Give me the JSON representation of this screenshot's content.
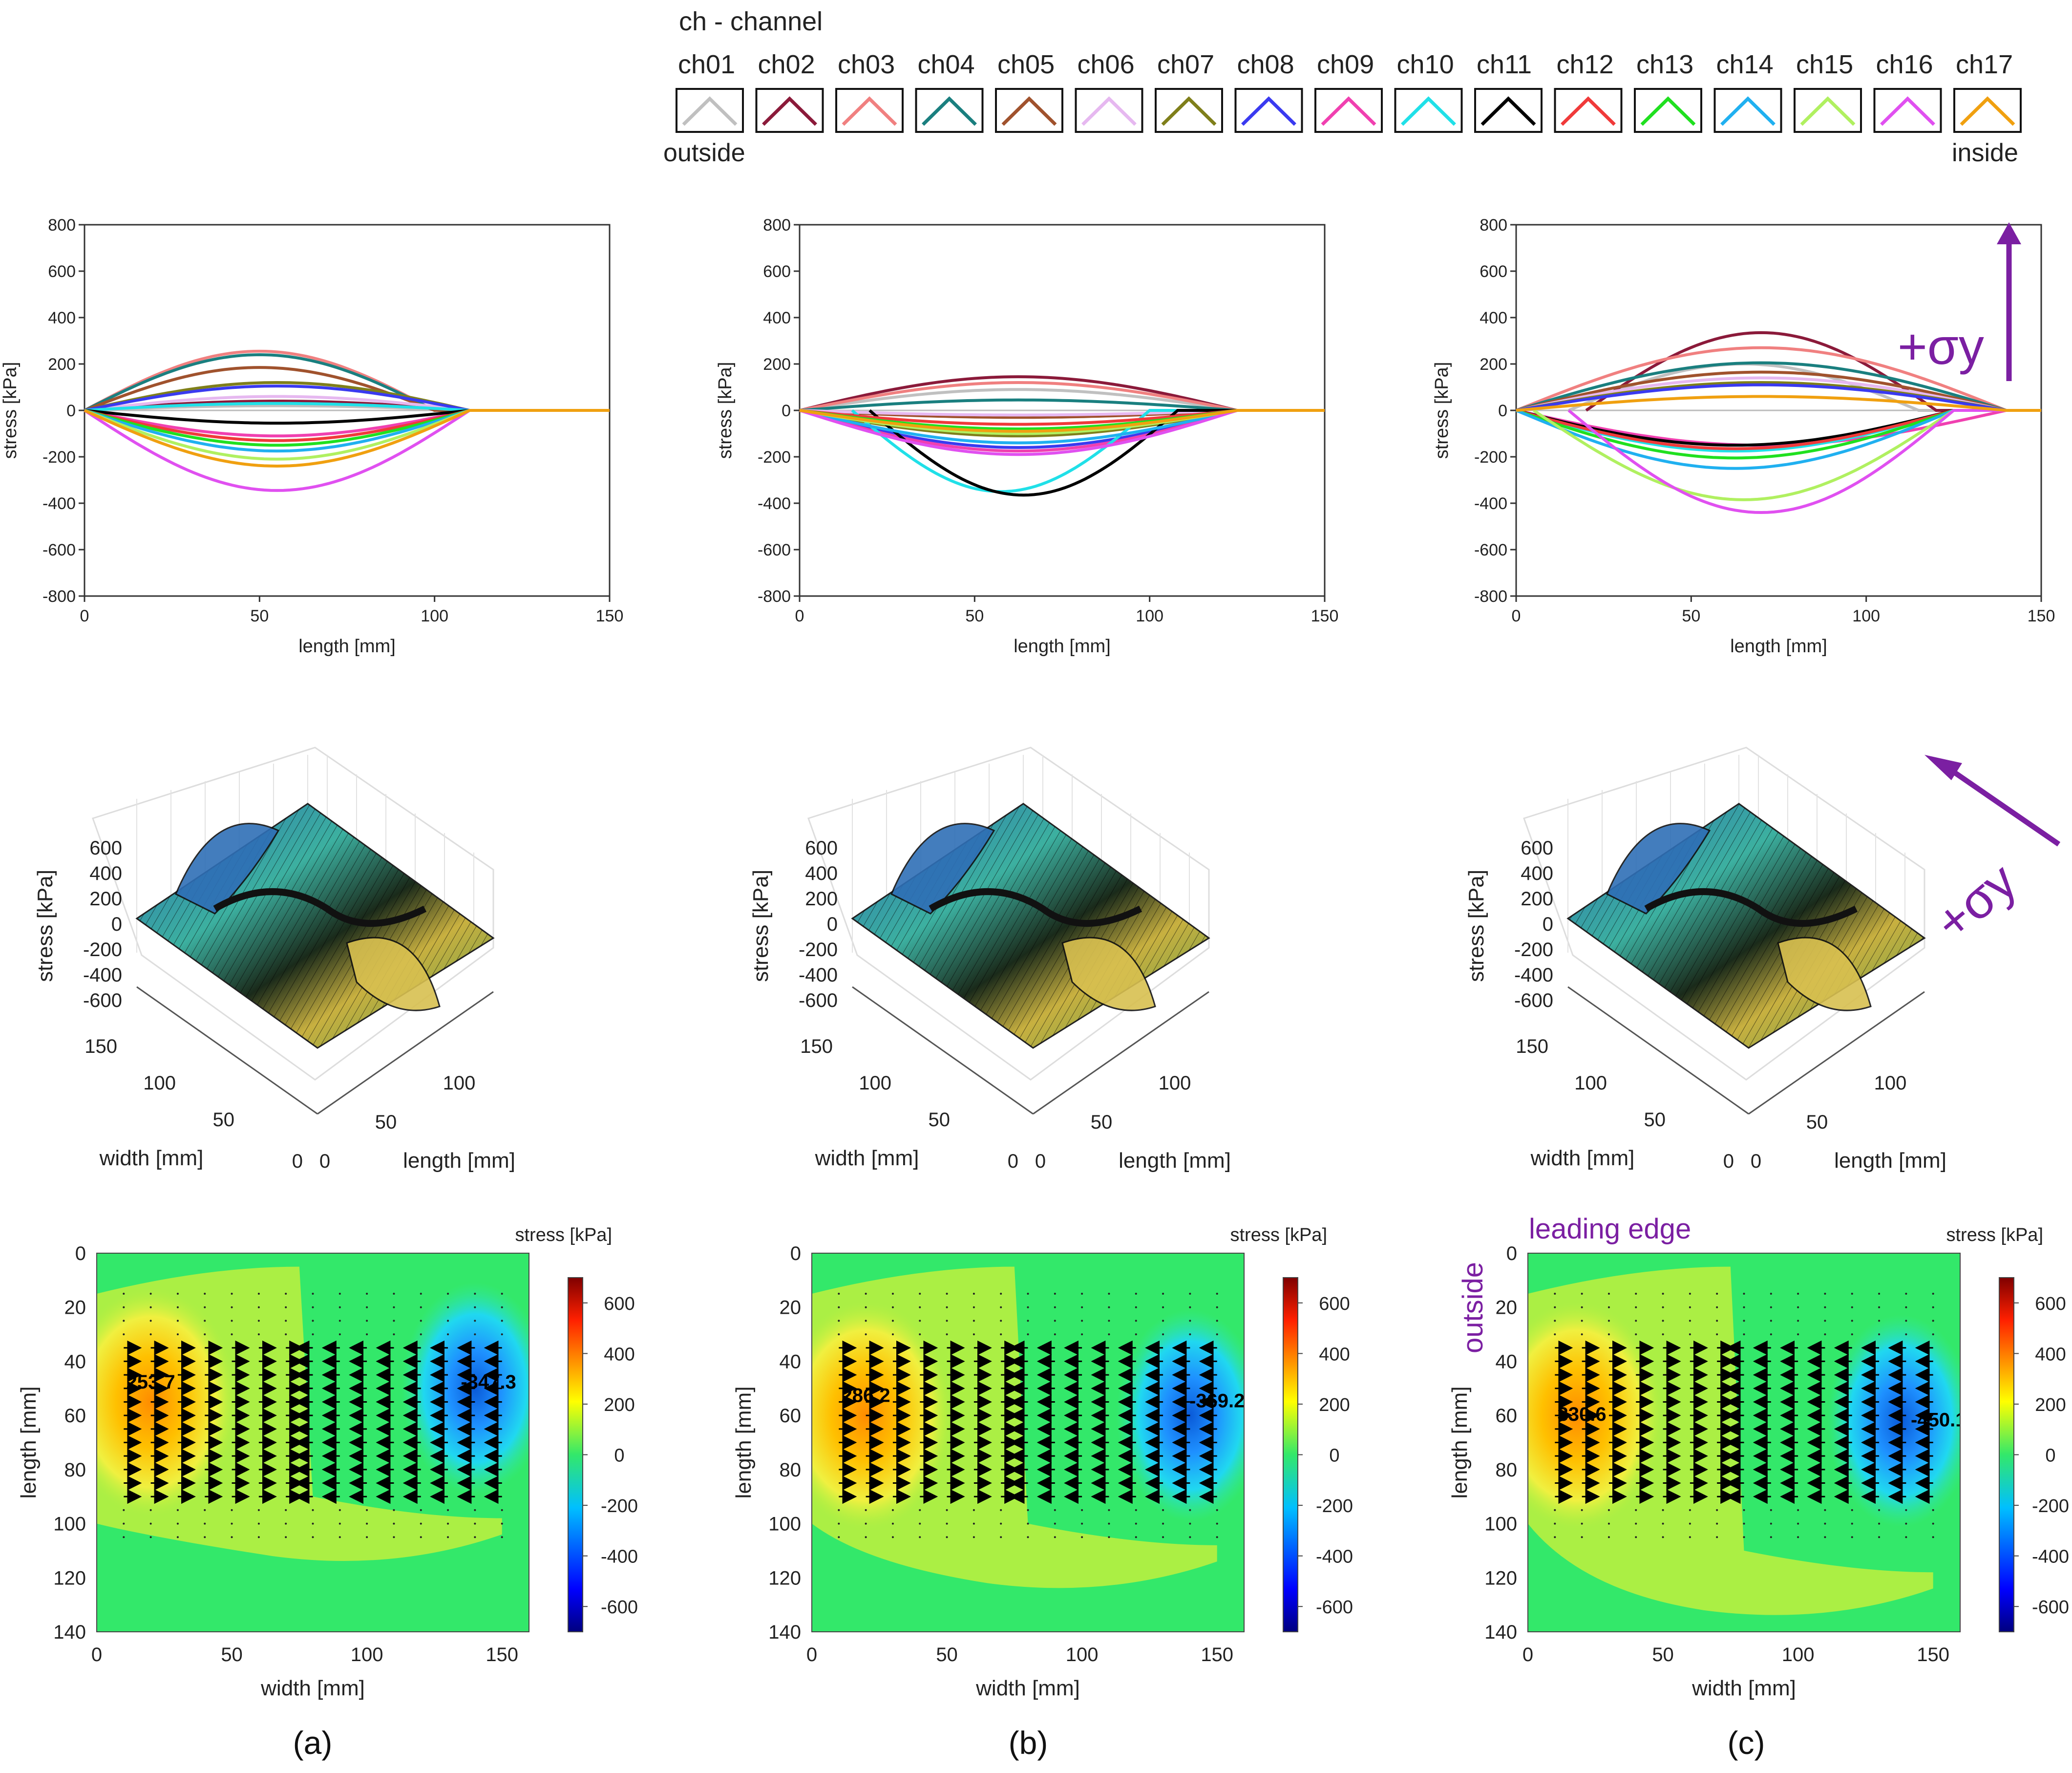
{
  "legend": {
    "title": "ch - channel",
    "outside_label": "outside",
    "inside_label": "inside",
    "channels": [
      {
        "label": "ch01",
        "color": "#c0c0c0"
      },
      {
        "label": "ch02",
        "color": "#8b1a3a"
      },
      {
        "label": "ch03",
        "color": "#f08080"
      },
      {
        "label": "ch04",
        "color": "#1a7f7f"
      },
      {
        "label": "ch05",
        "color": "#a0522d"
      },
      {
        "label": "ch06",
        "color": "#e6b8f0"
      },
      {
        "label": "ch07",
        "color": "#7f7f1a"
      },
      {
        "label": "ch08",
        "color": "#3a3af0"
      },
      {
        "label": "ch09",
        "color": "#f040b0"
      },
      {
        "label": "ch10",
        "color": "#20e0e8"
      },
      {
        "label": "ch11",
        "color": "#000000"
      },
      {
        "label": "ch12",
        "color": "#f03a3a"
      },
      {
        "label": "ch13",
        "color": "#20e020"
      },
      {
        "label": "ch14",
        "color": "#20b0f0"
      },
      {
        "label": "ch15",
        "color": "#b0f060"
      },
      {
        "label": "ch16",
        "color": "#e050f0"
      },
      {
        "label": "ch17",
        "color": "#f0a010"
      }
    ]
  },
  "panel_labels": [
    "(a)",
    "(b)",
    "(c)"
  ],
  "annotations": {
    "sigma_label": "+σy",
    "leading_edge": "leading edge",
    "outside": "outside",
    "accent_color": "#7b1fa2"
  },
  "chart_data": [
    {
      "type": "line",
      "panel": "a",
      "xlabel": "length [mm]",
      "ylabel": "stress [kPa]",
      "xlim": [
        0,
        150
      ],
      "ylim": [
        -800,
        800
      ],
      "xticks": [
        0,
        50,
        100,
        150
      ],
      "yticks": [
        800,
        600,
        400,
        200,
        0,
        -200,
        -400,
        -600,
        -800
      ],
      "series": [
        {
          "name": "ch01",
          "start": 0,
          "end": 110,
          "peak": 20
        },
        {
          "name": "ch02",
          "start": 0,
          "end": 110,
          "peak": 40
        },
        {
          "name": "ch03",
          "start": 0,
          "end": 100,
          "peak": 255
        },
        {
          "name": "ch04",
          "start": 0,
          "end": 100,
          "peak": 240
        },
        {
          "name": "ch05",
          "start": 0,
          "end": 100,
          "peak": 185
        },
        {
          "name": "ch06",
          "start": 0,
          "end": 110,
          "peak": 60
        },
        {
          "name": "ch07",
          "start": 0,
          "end": 110,
          "peak": 120
        },
        {
          "name": "ch08",
          "start": 0,
          "end": 110,
          "peak": 105
        },
        {
          "name": "ch09",
          "start": 0,
          "end": 110,
          "peak": -110
        },
        {
          "name": "ch10",
          "start": 0,
          "end": 110,
          "peak": 30
        },
        {
          "name": "ch11",
          "start": 0,
          "end": 110,
          "peak": -55
        },
        {
          "name": "ch12",
          "start": 0,
          "end": 110,
          "peak": -130
        },
        {
          "name": "ch13",
          "start": 0,
          "end": 110,
          "peak": -150
        },
        {
          "name": "ch14",
          "start": 0,
          "end": 110,
          "peak": -175
        },
        {
          "name": "ch15",
          "start": 0,
          "end": 110,
          "peak": -210
        },
        {
          "name": "ch16",
          "start": 0,
          "end": 110,
          "peak": -345
        },
        {
          "name": "ch17",
          "start": 0,
          "end": 110,
          "peak": -240
        }
      ]
    },
    {
      "type": "line",
      "panel": "b",
      "xlabel": "length [mm]",
      "ylabel": "stress [kPa]",
      "xlim": [
        0,
        150
      ],
      "ylim": [
        -800,
        800
      ],
      "xticks": [
        0,
        50,
        100,
        150
      ],
      "yticks": [
        800,
        600,
        400,
        200,
        0,
        -200,
        -400,
        -600,
        -800
      ],
      "series": [
        {
          "name": "ch01",
          "start": 0,
          "end": 125,
          "peak": 90
        },
        {
          "name": "ch02",
          "start": 0,
          "end": 125,
          "peak": 145
        },
        {
          "name": "ch03",
          "start": 0,
          "end": 125,
          "peak": 120
        },
        {
          "name": "ch04",
          "start": 0,
          "end": 125,
          "peak": 45
        },
        {
          "name": "ch05",
          "start": 0,
          "end": 125,
          "peak": -30
        },
        {
          "name": "ch06",
          "start": 0,
          "end": 125,
          "peak": -20
        },
        {
          "name": "ch07",
          "start": 0,
          "end": 125,
          "peak": -110
        },
        {
          "name": "ch08",
          "start": 0,
          "end": 125,
          "peak": -160
        },
        {
          "name": "ch09",
          "start": 0,
          "end": 125,
          "peak": -175
        },
        {
          "name": "ch10",
          "start": 15,
          "end": 100,
          "peak": -350
        },
        {
          "name": "ch11",
          "start": 20,
          "end": 108,
          "peak": -365
        },
        {
          "name": "ch12",
          "start": 0,
          "end": 125,
          "peak": -60
        },
        {
          "name": "ch13",
          "start": 0,
          "end": 125,
          "peak": -80
        },
        {
          "name": "ch14",
          "start": 0,
          "end": 125,
          "peak": -140
        },
        {
          "name": "ch15",
          "start": 0,
          "end": 125,
          "peak": -100
        },
        {
          "name": "ch16",
          "start": 0,
          "end": 125,
          "peak": -190
        },
        {
          "name": "ch17",
          "start": 0,
          "end": 125,
          "peak": -90
        }
      ]
    },
    {
      "type": "line",
      "panel": "c",
      "xlabel": "length [mm]",
      "ylabel": "stress [kPa]",
      "xlim": [
        0,
        150
      ],
      "ylim": [
        -800,
        800
      ],
      "xticks": [
        0,
        50,
        100,
        150
      ],
      "yticks": [
        800,
        600,
        400,
        200,
        0,
        -200,
        -400,
        -600,
        -800
      ],
      "series": [
        {
          "name": "ch01",
          "start": 15,
          "end": 115,
          "peak": 200
        },
        {
          "name": "ch02",
          "start": 20,
          "end": 120,
          "peak": 335
        },
        {
          "name": "ch03",
          "start": 0,
          "end": 140,
          "peak": 270
        },
        {
          "name": "ch04",
          "start": 0,
          "end": 140,
          "peak": 205
        },
        {
          "name": "ch05",
          "start": 0,
          "end": 140,
          "peak": 165
        },
        {
          "name": "ch06",
          "start": 0,
          "end": 140,
          "peak": 140
        },
        {
          "name": "ch07",
          "start": 0,
          "end": 140,
          "peak": 120
        },
        {
          "name": "ch08",
          "start": 0,
          "end": 140,
          "peak": 110
        },
        {
          "name": "ch09",
          "start": 0,
          "end": 140,
          "peak": -150
        },
        {
          "name": "ch10",
          "start": 0,
          "end": 125,
          "peak": -175
        },
        {
          "name": "ch11",
          "start": 0,
          "end": 125,
          "peak": -150
        },
        {
          "name": "ch12",
          "start": 0,
          "end": 125,
          "peak": -165
        },
        {
          "name": "ch13",
          "start": 0,
          "end": 125,
          "peak": -205
        },
        {
          "name": "ch14",
          "start": 0,
          "end": 125,
          "peak": -250
        },
        {
          "name": "ch15",
          "start": 5,
          "end": 125,
          "peak": -385
        },
        {
          "name": "ch16",
          "start": 15,
          "end": 125,
          "peak": -440
        },
        {
          "name": "ch17",
          "start": 0,
          "end": 140,
          "peak": 60
        }
      ]
    },
    {
      "type": "surface3d",
      "panel": "a",
      "zlabel": "stress [kPa]",
      "zticks": [
        600,
        400,
        200,
        0,
        -200,
        -400,
        -600
      ],
      "xlabel": "width [mm]",
      "xticks": [
        150,
        100,
        50,
        0
      ],
      "ylabel": "length [mm]",
      "yticks": [
        0,
        50,
        100
      ]
    },
    {
      "type": "surface3d",
      "panel": "b",
      "zlabel": "stress [kPa]",
      "zticks": [
        600,
        400,
        200,
        0,
        -200,
        -400,
        -600
      ],
      "xlabel": "width [mm]",
      "xticks": [
        150,
        100,
        50,
        0
      ],
      "ylabel": "length [mm]",
      "yticks": [
        0,
        50,
        100
      ]
    },
    {
      "type": "surface3d",
      "panel": "c",
      "zlabel": "stress [kPa]",
      "zticks": [
        600,
        400,
        200,
        0,
        -200,
        -400,
        -600
      ],
      "xlabel": "width [mm]",
      "xticks": [
        150,
        100,
        50,
        0
      ],
      "ylabel": "length [mm]",
      "yticks": [
        0,
        50,
        100
      ]
    },
    {
      "type": "heatmap",
      "panel": "a",
      "xlabel": "width [mm]",
      "ylabel": "length [mm]",
      "colorbar_label": "stress [kPa]",
      "xlim": [
        0,
        160
      ],
      "ylim": [
        0,
        140
      ],
      "xticks": [
        0,
        50,
        100,
        150
      ],
      "yticks": [
        0,
        20,
        40,
        60,
        80,
        100,
        120,
        140
      ],
      "cbar_ticks": [
        600,
        400,
        200,
        0,
        -200,
        -400,
        -600
      ],
      "cbar_range": [
        -700,
        700
      ],
      "max_value": {
        "label": "253.7",
        "x": 20,
        "y": 50
      },
      "min_value": {
        "label": "-347.3",
        "x": 145,
        "y": 50
      },
      "hot_cx": 20,
      "hot_cy": 55,
      "cold_cx": 140,
      "cold_cy": 50,
      "tail_y": 110
    },
    {
      "type": "heatmap",
      "panel": "b",
      "xlabel": "width [mm]",
      "ylabel": "length [mm]",
      "colorbar_label": "stress [kPa]",
      "xlim": [
        0,
        160
      ],
      "ylim": [
        0,
        140
      ],
      "xticks": [
        0,
        50,
        100,
        150
      ],
      "yticks": [
        0,
        20,
        40,
        60,
        80,
        100,
        120,
        140
      ],
      "cbar_ticks": [
        600,
        400,
        200,
        0,
        -200,
        -400,
        -600
      ],
      "cbar_range": [
        -700,
        700
      ],
      "max_value": {
        "label": "286.2",
        "x": 20,
        "y": 55
      },
      "min_value": {
        "label": "-369.2",
        "x": 150,
        "y": 57
      },
      "hot_cx": 20,
      "hot_cy": 60,
      "cold_cx": 140,
      "cold_cy": 60,
      "tail_y": 120
    },
    {
      "type": "heatmap",
      "panel": "c",
      "xlabel": "width [mm]",
      "ylabel": "length [mm]",
      "colorbar_label": "stress [kPa]",
      "xlim": [
        0,
        160
      ],
      "ylim": [
        0,
        140
      ],
      "xticks": [
        0,
        50,
        100,
        150
      ],
      "yticks": [
        0,
        20,
        40,
        60,
        80,
        100,
        120,
        140
      ],
      "cbar_ticks": [
        600,
        400,
        200,
        0,
        -200,
        -400,
        -600
      ],
      "cbar_range": [
        -700,
        700
      ],
      "max_value": {
        "label": "330.6",
        "x": 20,
        "y": 62
      },
      "min_value": {
        "label": "-450.1",
        "x": 152,
        "y": 64
      },
      "hot_cx": 18,
      "hot_cy": 60,
      "cold_cx": 138,
      "cold_cy": 62,
      "tail_y": 130
    }
  ]
}
